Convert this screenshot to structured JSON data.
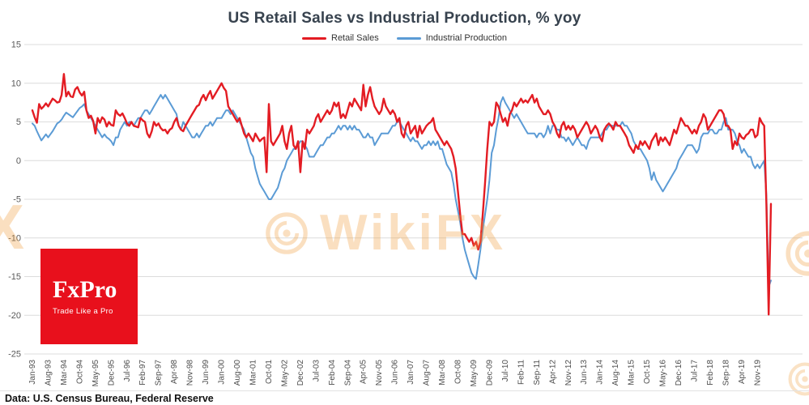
{
  "title": "US Retail Sales vs Industrial Production, % yoy",
  "legend": [
    {
      "label": "Retail Sales",
      "color": "#e31c23"
    },
    {
      "label": "Industrial Production",
      "color": "#5b9bd5"
    }
  ],
  "source_note": "Data: U.S. Census Bureau, Federal Reserve",
  "watermark": {
    "brand": "WikiFX",
    "left_text": "X"
  },
  "logo": {
    "brand": "FxPro",
    "tagline": "Trade Like a Pro",
    "background": "#e8101c"
  },
  "chart_data": {
    "type": "line",
    "frequency": "monthly",
    "x_start": "Jan-93",
    "x_end": "May-20",
    "x_tick_every": 7,
    "x_tick_labels": [
      "Jan-93",
      "Aug-93",
      "Mar-94",
      "Oct-94",
      "May-95",
      "Dec-95",
      "Jul-96",
      "Feb-97",
      "Sep-97",
      "Apr-98",
      "Nov-98",
      "Jun-99",
      "Jan-00",
      "Aug-00",
      "Mar-01",
      "Oct-01",
      "May-02",
      "Dec-02",
      "Jul-03",
      "Feb-04",
      "Sep-04",
      "Apr-05",
      "Nov-05",
      "Jun-06",
      "Jan-07",
      "Aug-07",
      "Mar-08",
      "Oct-08",
      "May-09",
      "Dec-09",
      "Jul-10",
      "Feb-11",
      "Sep-11",
      "Apr-12",
      "Nov-12",
      "Jun-13",
      "Jan-14",
      "Aug-14",
      "Mar-15",
      "Oct-15",
      "May-16",
      "Dec-16",
      "Jul-17",
      "Feb-18",
      "Sep-18",
      "Apr-19",
      "Nov-19"
    ],
    "ylim": [
      -25,
      15
    ],
    "y_ticks": [
      15,
      10,
      5,
      0,
      -5,
      -10,
      -15,
      -20,
      -25
    ],
    "grid": true,
    "legend_position": "top",
    "series": [
      {
        "name": "Retail Sales",
        "color": "#e31c23",
        "values": [
          6.5,
          5.6,
          4.9,
          7.3,
          6.7,
          7.0,
          7.4,
          7.0,
          7.5,
          8.0,
          7.8,
          7.5,
          7.6,
          8.5,
          11.2,
          8.3,
          8.9,
          8.3,
          8.2,
          9.2,
          9.5,
          8.8,
          8.4,
          8.9,
          6.5,
          5.5,
          5.8,
          5.1,
          3.5,
          5.5,
          4.9,
          5.6,
          5.3,
          4.4,
          5.0,
          4.6,
          4.5,
          6.5,
          6.0,
          5.8,
          6.1,
          5.5,
          4.8,
          4.5,
          5.0,
          4.5,
          4.4,
          4.3,
          5.5,
          5.2,
          5.0,
          3.5,
          3.0,
          3.8,
          5.0,
          4.5,
          4.8,
          4.2,
          3.9,
          4.0,
          3.5,
          4.0,
          4.2,
          5.0,
          5.5,
          4.5,
          4.0,
          3.8,
          4.5,
          5.0,
          5.5,
          6.0,
          6.5,
          7.0,
          7.2,
          8.0,
          8.5,
          7.8,
          8.5,
          9.0,
          8.0,
          8.5,
          9.0,
          9.5,
          10.0,
          9.4,
          9.0,
          7.0,
          6.5,
          6.0,
          5.5,
          5.0,
          5.5,
          4.5,
          3.5,
          3.0,
          3.5,
          3.0,
          2.5,
          3.5,
          3.0,
          2.5,
          2.8,
          3.0,
          -1.5,
          7.3,
          2.5,
          2.0,
          2.5,
          3.0,
          3.5,
          4.5,
          2.5,
          1.5,
          3.5,
          4.5,
          2.0,
          1.5,
          2.5,
          -1.5,
          2.5,
          1.5,
          4.0,
          3.5,
          4.0,
          4.5,
          5.5,
          6.0,
          5.0,
          5.5,
          6.0,
          6.5,
          6.0,
          6.5,
          7.5,
          7.0,
          7.5,
          5.5,
          6.0,
          5.5,
          6.5,
          7.5,
          7.0,
          8.0,
          7.5,
          7.0,
          6.5,
          9.8,
          7.0,
          8.5,
          9.5,
          8.0,
          7.0,
          6.5,
          6.0,
          6.5,
          8.0,
          7.0,
          6.5,
          6.0,
          6.5,
          6.0,
          5.0,
          5.5,
          3.5,
          3.0,
          4.5,
          5.0,
          3.5,
          4.0,
          4.5,
          3.0,
          4.5,
          3.5,
          4.0,
          4.5,
          4.8,
          5.0,
          5.5,
          4.0,
          3.5,
          3.0,
          2.5,
          2.0,
          2.5,
          2.0,
          1.5,
          0.5,
          -1.0,
          -4.0,
          -7.0,
          -9.5,
          -9.5,
          -10.0,
          -10.5,
          -10.0,
          -11.0,
          -10.5,
          -11.5,
          -10.5,
          -7.0,
          -3.0,
          1.5,
          5.0,
          4.5,
          5.0,
          7.5,
          7.0,
          6.0,
          5.0,
          5.5,
          4.5,
          6.0,
          6.5,
          7.5,
          7.0,
          7.5,
          8.0,
          7.5,
          7.8,
          7.5,
          8.0,
          8.5,
          7.5,
          8.0,
          7.0,
          6.5,
          6.0,
          6.0,
          6.5,
          6.0,
          5.0,
          4.5,
          3.5,
          3.0,
          4.5,
          5.0,
          4.0,
          4.5,
          4.0,
          4.5,
          4.0,
          3.0,
          3.5,
          4.0,
          4.5,
          5.0,
          4.5,
          3.5,
          4.0,
          4.5,
          4.0,
          3.0,
          2.5,
          4.0,
          4.5,
          4.8,
          4.5,
          4.0,
          5.0,
          4.5,
          4.5,
          4.0,
          3.5,
          3.0,
          2.0,
          1.5,
          1.0,
          2.0,
          1.5,
          2.5,
          2.0,
          2.5,
          2.0,
          1.5,
          2.5,
          3.0,
          3.5,
          2.0,
          3.0,
          2.5,
          3.0,
          2.5,
          2.0,
          3.0,
          4.0,
          3.5,
          4.5,
          5.5,
          5.0,
          4.5,
          4.5,
          4.0,
          3.5,
          4.0,
          3.5,
          4.5,
          5.0,
          6.0,
          5.5,
          4.0,
          4.5,
          5.0,
          5.5,
          6.0,
          6.5,
          6.5,
          6.0,
          4.5,
          4.5,
          4.0,
          1.5,
          2.5,
          2.0,
          3.5,
          3.0,
          2.8,
          3.3,
          3.5,
          4.0,
          4.0,
          3.0,
          3.3,
          5.5,
          4.9,
          4.5,
          -5.7,
          -19.9,
          -5.6
        ]
      },
      {
        "name": "Industrial Production",
        "color": "#5b9bd5",
        "values": [
          4.8,
          4.5,
          3.8,
          3.2,
          2.6,
          3.0,
          3.4,
          3.0,
          3.4,
          3.8,
          4.3,
          4.8,
          5.0,
          5.3,
          5.8,
          6.2,
          6.0,
          5.8,
          5.6,
          6.0,
          6.4,
          6.8,
          7.0,
          7.3,
          6.5,
          6.0,
          5.5,
          5.0,
          4.5,
          4.0,
          3.5,
          3.0,
          3.4,
          3.0,
          2.8,
          2.5,
          2.0,
          3.0,
          3.0,
          4.0,
          4.5,
          5.0,
          4.5,
          5.0,
          5.0,
          4.5,
          5.0,
          5.5,
          5.5,
          6.0,
          6.5,
          6.5,
          6.0,
          6.5,
          7.0,
          7.5,
          8.0,
          8.5,
          8.0,
          8.5,
          8.0,
          7.5,
          7.0,
          6.5,
          6.0,
          4.5,
          4.0,
          5.0,
          4.5,
          4.0,
          3.5,
          3.0,
          3.0,
          3.5,
          3.0,
          3.5,
          4.0,
          4.5,
          4.5,
          5.0,
          4.5,
          5.0,
          5.5,
          5.5,
          5.5,
          6.0,
          6.5,
          6.5,
          6.0,
          6.5,
          6.0,
          5.5,
          5.0,
          4.5,
          4.0,
          3.0,
          2.0,
          1.0,
          0.5,
          -1.0,
          -2.0,
          -3.0,
          -3.5,
          -4.0,
          -4.5,
          -5.0,
          -5.0,
          -4.5,
          -4.0,
          -3.5,
          -2.5,
          -1.5,
          -1.0,
          0.0,
          0.5,
          1.0,
          1.5,
          1.5,
          2.0,
          2.5,
          2.5,
          2.0,
          1.5,
          0.5,
          0.5,
          0.5,
          1.0,
          1.5,
          2.0,
          2.0,
          2.5,
          3.0,
          3.0,
          3.5,
          3.5,
          4.0,
          4.5,
          4.0,
          4.5,
          4.5,
          4.0,
          4.5,
          4.0,
          4.5,
          4.0,
          4.0,
          3.5,
          3.0,
          3.0,
          3.5,
          3.0,
          3.0,
          2.0,
          2.5,
          3.0,
          3.5,
          3.5,
          3.5,
          3.5,
          4.0,
          4.5,
          4.5,
          5.0,
          5.0,
          4.5,
          4.0,
          3.5,
          3.0,
          2.5,
          3.0,
          2.5,
          2.5,
          2.0,
          1.5,
          2.0,
          2.0,
          2.5,
          2.0,
          2.5,
          2.0,
          2.5,
          1.5,
          1.5,
          0.5,
          -0.5,
          -1.0,
          -1.5,
          -3.0,
          -5.0,
          -6.5,
          -8.0,
          -10.0,
          -11.5,
          -12.5,
          -13.5,
          -14.5,
          -15.0,
          -15.3,
          -13.5,
          -11.5,
          -9.0,
          -7.0,
          -5.0,
          -2.5,
          1.0,
          2.0,
          4.0,
          5.5,
          7.5,
          8.2,
          7.5,
          7.0,
          6.5,
          6.0,
          5.5,
          6.0,
          5.5,
          5.0,
          4.5,
          4.0,
          3.5,
          3.5,
          3.5,
          3.5,
          3.0,
          3.5,
          3.5,
          3.0,
          3.5,
          4.5,
          3.5,
          4.5,
          4.5,
          4.0,
          4.0,
          3.0,
          3.0,
          2.5,
          3.0,
          2.5,
          2.0,
          2.5,
          3.0,
          2.5,
          2.0,
          2.0,
          1.5,
          2.5,
          3.0,
          3.0,
          3.0,
          3.0,
          3.0,
          3.5,
          4.0,
          4.0,
          4.5,
          4.5,
          4.5,
          4.5,
          4.5,
          4.5,
          5.0,
          4.5,
          4.5,
          4.0,
          3.5,
          2.5,
          2.0,
          1.5,
          1.5,
          1.0,
          0.5,
          0.0,
          -1.0,
          -2.5,
          -1.5,
          -2.5,
          -3.0,
          -3.5,
          -4.0,
          -3.5,
          -3.0,
          -2.5,
          -2.0,
          -1.5,
          -1.0,
          0.0,
          0.5,
          1.0,
          1.5,
          2.0,
          2.0,
          2.0,
          1.5,
          1.0,
          1.5,
          3.0,
          3.5,
          3.5,
          3.5,
          4.0,
          4.0,
          3.5,
          3.5,
          4.0,
          4.0,
          5.0,
          5.5,
          4.0,
          4.0,
          4.0,
          3.5,
          2.5,
          2.0,
          1.0,
          1.5,
          1.0,
          0.5,
          0.5,
          -0.5,
          -1.0,
          -0.5,
          -1.0,
          -0.5,
          0.0,
          -4.5,
          -16.3,
          -15.5
        ]
      }
    ]
  }
}
